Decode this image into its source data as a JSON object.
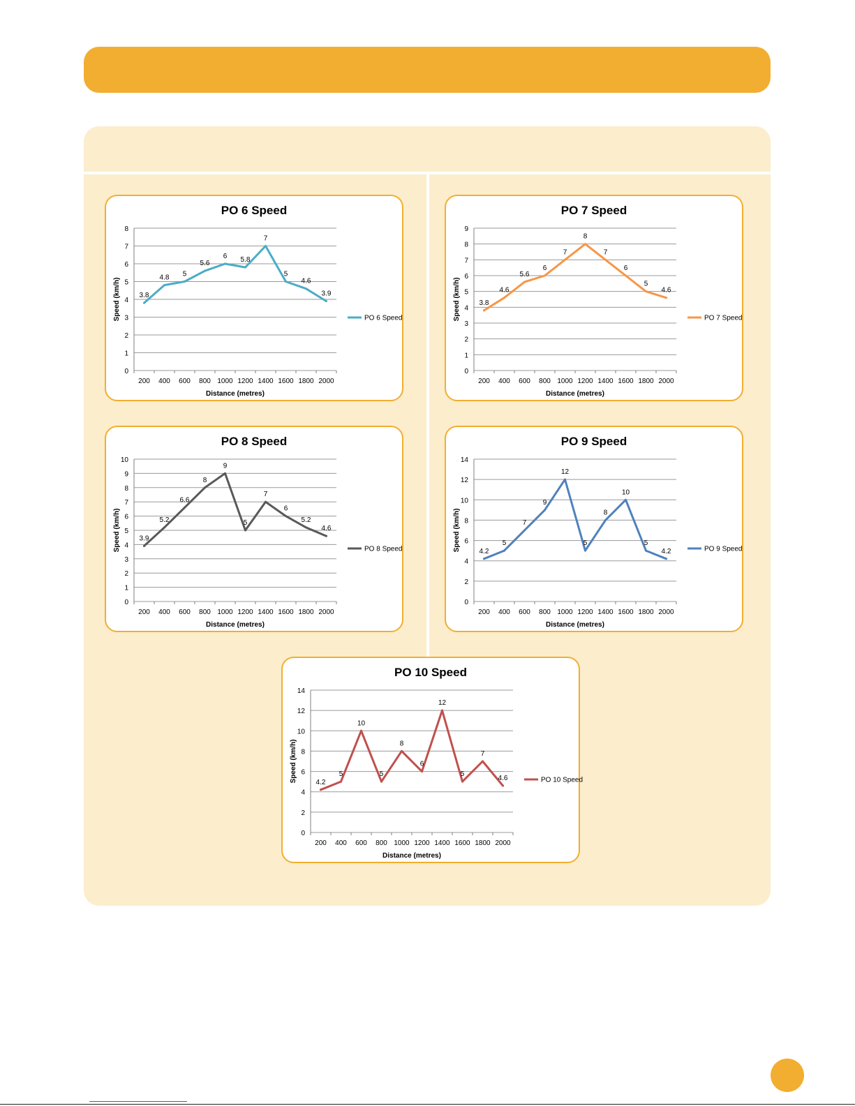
{
  "colors": {
    "accent": "#F2AE30",
    "panel_bg": "#FCEDCD"
  },
  "chart_data": [
    {
      "type": "line",
      "title": "PO 6 Speed",
      "xlabel": "Distance (metres)",
      "ylabel": "Speed (km/h)",
      "categories": [
        "200",
        "400",
        "600",
        "800",
        "1000",
        "1200",
        "1400",
        "1600",
        "1800",
        "2000"
      ],
      "ylim": [
        0,
        8
      ],
      "yticks": [
        0,
        1,
        2,
        3,
        4,
        5,
        6,
        7,
        8
      ],
      "grid": true,
      "legend": "right",
      "series": [
        {
          "name": "PO 6 Speed",
          "color": "#4BACC6",
          "values": [
            3.8,
            4.8,
            5,
            5.6,
            6,
            5.8,
            7,
            5,
            4.6,
            3.9
          ],
          "labels": [
            "3.8",
            "4.8",
            "5",
            "5.6",
            "6",
            "5.8",
            "7",
            "5",
            "4.6",
            "3.9"
          ]
        }
      ]
    },
    {
      "type": "line",
      "title": "PO 7 Speed",
      "xlabel": "Distance (metres)",
      "ylabel": "Speed (km/h)",
      "categories": [
        "200",
        "400",
        "600",
        "800",
        "1000",
        "1200",
        "1400",
        "1600",
        "1800",
        "2000"
      ],
      "ylim": [
        0,
        9
      ],
      "yticks": [
        0,
        1,
        2,
        3,
        4,
        5,
        6,
        7,
        8,
        9
      ],
      "grid": true,
      "legend": "right",
      "series": [
        {
          "name": "PO 7 Speed",
          "color": "#F79646",
          "values": [
            3.8,
            4.6,
            5.6,
            6,
            7,
            8,
            7,
            6,
            5,
            4.6
          ],
          "labels": [
            "3.8",
            "4.6",
            "5.6",
            "6",
            "7",
            "8",
            "7",
            "6",
            "5",
            "4.6"
          ]
        }
      ]
    },
    {
      "type": "line",
      "title": "PO 8 Speed",
      "xlabel": "Distance (metres)",
      "ylabel": "Speed (km/h)",
      "categories": [
        "200",
        "400",
        "600",
        "800",
        "1000",
        "1200",
        "1400",
        "1600",
        "1800",
        "2000"
      ],
      "ylim": [
        0,
        10
      ],
      "yticks": [
        0,
        1,
        2,
        3,
        4,
        5,
        6,
        7,
        8,
        9,
        10
      ],
      "grid": true,
      "legend": "right",
      "series": [
        {
          "name": "PO 8 Speed",
          "color": "#595959",
          "values": [
            3.9,
            5.2,
            6.6,
            8,
            9,
            5,
            7,
            6,
            5.2,
            4.6
          ],
          "labels": [
            "3.9",
            "5.2",
            "6.6",
            "8",
            "9",
            "5",
            "7",
            "6",
            "5.2",
            "4.6"
          ]
        }
      ]
    },
    {
      "type": "line",
      "title": "PO 9 Speed",
      "xlabel": "Distance (metres)",
      "ylabel": "Speed (km/h)",
      "categories": [
        "200",
        "400",
        "600",
        "800",
        "1000",
        "1200",
        "1400",
        "1600",
        "1800",
        "2000"
      ],
      "ylim": [
        0,
        14
      ],
      "yticks": [
        0,
        2,
        4,
        6,
        8,
        10,
        12,
        14
      ],
      "grid": true,
      "legend": "right",
      "series": [
        {
          "name": "PO 9 Speed",
          "color": "#4F81BD",
          "values": [
            4.2,
            5,
            7,
            9,
            12,
            5,
            8,
            10,
            5,
            4.2
          ],
          "labels": [
            "4.2",
            "5",
            "7",
            "9",
            "12",
            "5",
            "8",
            "10",
            "5",
            "4.2"
          ]
        }
      ]
    },
    {
      "type": "line",
      "title": "PO 10 Speed",
      "xlabel": "Distance (metres)",
      "ylabel": "Speed (km/h)",
      "categories": [
        "200",
        "400",
        "600",
        "800",
        "1000",
        "1200",
        "1400",
        "1600",
        "1800",
        "2000"
      ],
      "ylim": [
        0,
        14
      ],
      "yticks": [
        0,
        2,
        4,
        6,
        8,
        10,
        12,
        14
      ],
      "grid": true,
      "legend": "right",
      "series": [
        {
          "name": "PO 10 Speed",
          "color": "#C0504D",
          "values": [
            4.2,
            5,
            10,
            5,
            8,
            6,
            12,
            5,
            7,
            4.6
          ],
          "labels": [
            "4.2",
            "5",
            "10",
            "5",
            "8",
            "6",
            "12",
            "5",
            "7",
            "4.6"
          ]
        }
      ]
    }
  ]
}
